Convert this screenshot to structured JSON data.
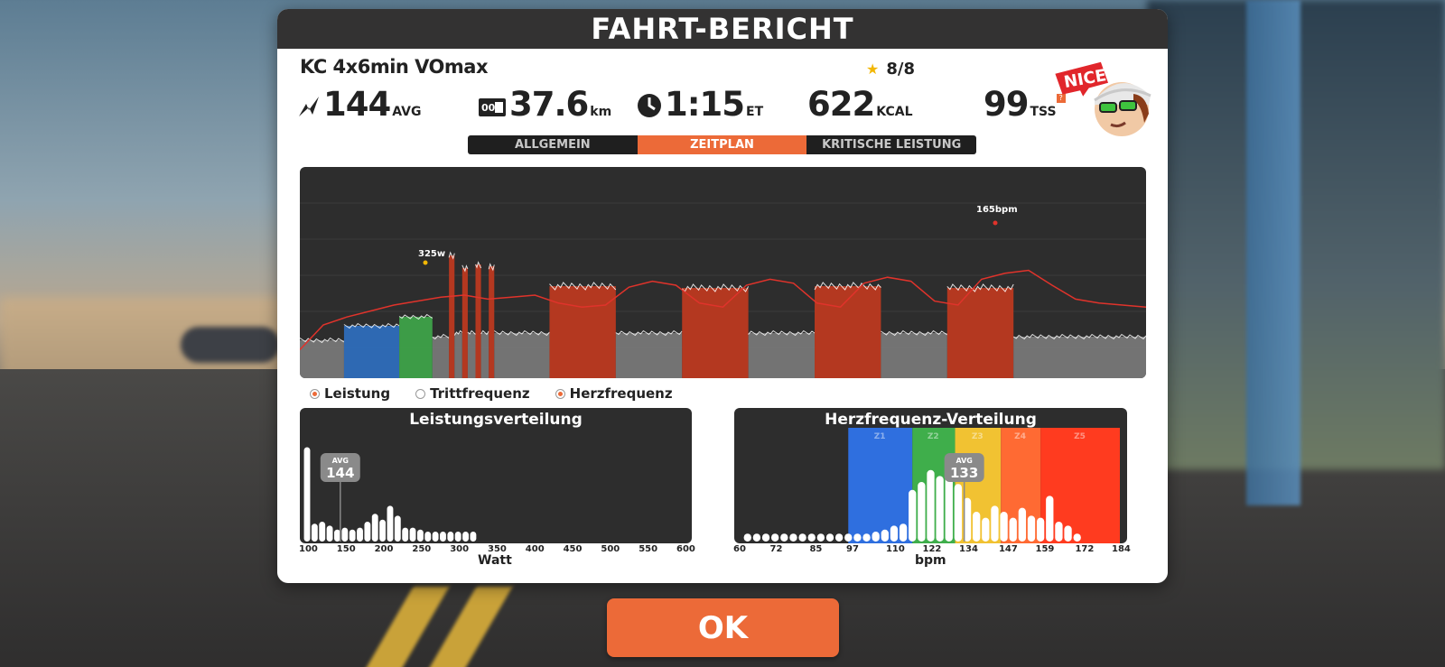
{
  "dialog": {
    "title": "FAHRT-BERICHT",
    "workout_name": "KC 4x6min VOmax",
    "rating": "8/8",
    "badge": "NICE!"
  },
  "stats": {
    "power": {
      "value": "144",
      "unit": "AVG"
    },
    "distance": {
      "value": "37.6",
      "unit": "km"
    },
    "time": {
      "value": "1:15",
      "unit": "ET"
    },
    "calories": {
      "value": "622",
      "unit": "KCAL"
    },
    "tss": {
      "value": "99",
      "unit": "TSS"
    }
  },
  "tabs": [
    {
      "label": "ALLGEMEIN",
      "active": false
    },
    {
      "label": "ZEITPLAN",
      "active": true
    },
    {
      "label": "KRITISCHE LEISTUNG",
      "active": false
    }
  ],
  "legend": {
    "power": {
      "label": "Leistung",
      "on": true
    },
    "cadence": {
      "label": "Trittfrequenz",
      "on": false
    },
    "heart_rate": {
      "label": "Herzfrequenz",
      "on": true
    }
  },
  "colors": {
    "accent": "#ec6a38",
    "hr_line": "#e0332b",
    "zone_recovery": "#7a7a7a",
    "zone_endurance": "#2f6fbf",
    "zone_tempo": "#3fa64a",
    "zone_vo2": "#c0391f"
  },
  "chart_data": [
    {
      "type": "area",
      "annotations": [
        "325w",
        "165bpm"
      ],
      "series": [
        {
          "name": "Leistung",
          "unit": "W",
          "segments": [
            {
              "duration_min": 4,
              "watts": 90,
              "zone": "recovery"
            },
            {
              "duration_min": 5,
              "watts": 130,
              "zone": "endurance"
            },
            {
              "duration_min": 3,
              "watts": 155,
              "zone": "tempo"
            },
            {
              "duration_min": 1.5,
              "watts": 100,
              "zone": "recovery"
            },
            {
              "duration_min": 0.5,
              "watts": 325,
              "zone": "vo2"
            },
            {
              "duration_min": 0.7,
              "watts": 110,
              "zone": "recovery"
            },
            {
              "duration_min": 0.5,
              "watts": 290,
              "zone": "vo2"
            },
            {
              "duration_min": 0.7,
              "watts": 110,
              "zone": "recovery"
            },
            {
              "duration_min": 0.5,
              "watts": 300,
              "zone": "vo2"
            },
            {
              "duration_min": 0.7,
              "watts": 110,
              "zone": "recovery"
            },
            {
              "duration_min": 0.5,
              "watts": 295,
              "zone": "vo2"
            },
            {
              "duration_min": 5,
              "watts": 110,
              "zone": "recovery"
            },
            {
              "duration_min": 6,
              "watts": 240,
              "zone": "vo2"
            },
            {
              "duration_min": 6,
              "watts": 110,
              "zone": "recovery"
            },
            {
              "duration_min": 6,
              "watts": 235,
              "zone": "vo2"
            },
            {
              "duration_min": 6,
              "watts": 110,
              "zone": "recovery"
            },
            {
              "duration_min": 6,
              "watts": 240,
              "zone": "vo2"
            },
            {
              "duration_min": 6,
              "watts": 110,
              "zone": "recovery"
            },
            {
              "duration_min": 6,
              "watts": 235,
              "zone": "vo2"
            },
            {
              "duration_min": 12,
              "watts": 100,
              "zone": "recovery"
            }
          ]
        },
        {
          "name": "Herzfrequenz",
          "unit": "bpm",
          "values": [
            85,
            110,
            118,
            124,
            130,
            134,
            138,
            140,
            136,
            138,
            140,
            132,
            128,
            130,
            148,
            154,
            150,
            132,
            128,
            150,
            156,
            152,
            132,
            128,
            152,
            158,
            154,
            134,
            130,
            156,
            162,
            165,
            150,
            136,
            132,
            130,
            128
          ]
        }
      ]
    },
    {
      "type": "bar",
      "title": "Leistungsverteilung",
      "xlabel": "Watt",
      "x_ticks": [
        "100",
        "150",
        "200",
        "250",
        "300",
        "350",
        "400",
        "450",
        "500",
        "550",
        "600"
      ],
      "average": {
        "label": "AVG",
        "value": "144"
      },
      "bins": [
        100,
        110,
        120,
        130,
        140,
        150,
        160,
        170,
        180,
        190,
        200,
        210,
        220,
        230,
        240,
        250,
        260,
        270,
        280,
        290,
        300,
        310,
        320
      ],
      "values": [
        95,
        18,
        20,
        16,
        12,
        14,
        12,
        14,
        20,
        28,
        22,
        36,
        26,
        14,
        14,
        12,
        10,
        10,
        10,
        10,
        10,
        10,
        10
      ]
    },
    {
      "type": "bar",
      "title": "Herzfrequenz-Verteilung",
      "xlabel": "bpm",
      "x_ticks": [
        "60",
        "72",
        "85",
        "97",
        "110",
        "122",
        "134",
        "147",
        "159",
        "172",
        "184"
      ],
      "zones": [
        {
          "label": "Z1",
          "from": 95,
          "to": 116,
          "color": "#2f6fdf"
        },
        {
          "label": "Z2",
          "from": 116,
          "to": 130,
          "color": "#3fae4b"
        },
        {
          "label": "Z3",
          "from": 130,
          "to": 145,
          "color": "#f1c232"
        },
        {
          "label": "Z4",
          "from": 145,
          "to": 158,
          "color": "#ff6a33"
        },
        {
          "label": "Z5",
          "from": 158,
          "to": 184,
          "color": "#ff3b1f"
        }
      ],
      "average": {
        "label": "AVG",
        "value": "133"
      },
      "bins": [
        62,
        65,
        68,
        71,
        74,
        77,
        80,
        83,
        86,
        89,
        92,
        95,
        98,
        101,
        104,
        107,
        110,
        113,
        116,
        119,
        122,
        125,
        128,
        131,
        134,
        137,
        140,
        143,
        146,
        149,
        152,
        155,
        158,
        161,
        164,
        167,
        170
      ],
      "values": [
        8,
        8,
        8,
        8,
        8,
        8,
        8,
        8,
        8,
        8,
        8,
        8,
        8,
        8,
        10,
        12,
        16,
        18,
        52,
        60,
        72,
        66,
        76,
        58,
        44,
        30,
        24,
        36,
        30,
        24,
        34,
        26,
        24,
        46,
        20,
        16,
        8
      ]
    }
  ],
  "ok_button": {
    "label": "OK"
  }
}
